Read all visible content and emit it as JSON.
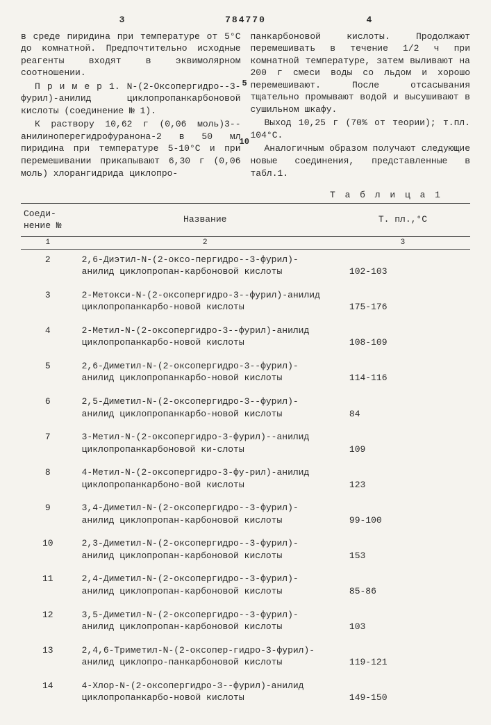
{
  "header": {
    "left_page": "3",
    "patent_number": "784770",
    "right_page": "4"
  },
  "left_column": {
    "p1": "в среде пиридина при температуре от 5°С до комнатной. Предпочтительно исходные реагенты входят в эквимолярном соотношении.",
    "p2": "П р и м е р 1. N-(2-Оксопергидро--3-фурил)-анилид циклопропанкарбоновой кислоты (соединение № 1).",
    "p3": "К раствору 10,62 г (0,06 моль)3--анилиноперегидрофуранона-2 в 50 мл пиридина при температуре 5-10°С и при перемешивании прикапывают 6,30 г (0,06 моль) хлорангидрида циклопро-"
  },
  "right_column": {
    "p1": "панкарбоновой кислоты. Продолжают перемешивать в течение 1/2 ч при комнатной температуре, затем выливают на 200 г смеси воды со льдом и хорошо перемешивают. После отсасывания тщательно промывают водой и высушивают в сушильном шкафу.",
    "p2": "Выход 10,25 г (70% от теории); т.пл. 104°С.",
    "p3": "Аналогичным образом получают следующие новые соединения, представленные в табл.1."
  },
  "line_numbers": {
    "five": "5",
    "ten": "10"
  },
  "table": {
    "label": "Т а б л и ц а  1",
    "head_col1": "Соеди-\nнение\n№",
    "head_col2": "Название",
    "head_col3": "Т. пл.,°С",
    "sub1": "1",
    "sub2": "2",
    "sub3": "3",
    "rows": [
      {
        "n": "2",
        "name": "2,6-Диэтил-N-(2-оксо-пергидро--3-фурил)-анилид циклопропан-карбоновой кислоты",
        "mp": "102-103"
      },
      {
        "n": "3",
        "name": "2-Метокси-N-(2-оксопергидро-3--фурил)-анилид циклопропанкарбо-новой кислоты",
        "mp": "175-176"
      },
      {
        "n": "4",
        "name": "2-Метил-N-(2-оксопергидро-3--фурил)-анилид циклопропанкарбо-новой кислоты",
        "mp": "108-109"
      },
      {
        "n": "5",
        "name": "2,6-Диметил-N-(2-оксопергидро-3--фурил)-анилид циклопропанкарбо-новой кислоты",
        "mp": "114-116"
      },
      {
        "n": "6",
        "name": "2,5-Диметил-N-(2-оксопергидро-3--фурил)-анилид циклопропанкарбо-новой кислоты",
        "mp": "84"
      },
      {
        "n": "7",
        "name": "3-Метил-N-(2-оксопергидро-3-фурил)--анилид циклопропанкарбоновой ки-слоты",
        "mp": "109"
      },
      {
        "n": "8",
        "name": "4-Метил-N-(2-оксопергидро-3-фу-рил)-анилид циклопропанкарбоно-вой кислоты",
        "mp": "123"
      },
      {
        "n": "9",
        "name": "3,4-Диметил-N-(2-оксопергидро--3-фурил)-анилид циклопропан-карбоновой кислоты",
        "mp": "99-100"
      },
      {
        "n": "10",
        "name": "2,3-Диметил-N-(2-оксопергидро--3-фурил)-анилид циклопропан-карбоновой кислоты",
        "mp": "153"
      },
      {
        "n": "11",
        "name": "2,4-Диметил-N-(2-оксопергидро--3-фурил)-анилид циклопропан-карбоновой кислоты",
        "mp": "85-86"
      },
      {
        "n": "12",
        "name": "3,5-Диметил-N-(2-оксопергидро--3-фурил)-анилид циклопропан-карбоновой кислоты",
        "mp": "103"
      },
      {
        "n": "13",
        "name": "2,4,6-Триметил-N-(2-оксопер-гидро-3-фурил)-анилид циклопро-панкарбоновой кислоты",
        "mp": "119-121"
      },
      {
        "n": "14",
        "name": "4-Хлор-N-(2-оксопергидро-3--фурил)-анилид циклопропанкарбо-новой кислоты",
        "mp": "149-150"
      }
    ]
  }
}
